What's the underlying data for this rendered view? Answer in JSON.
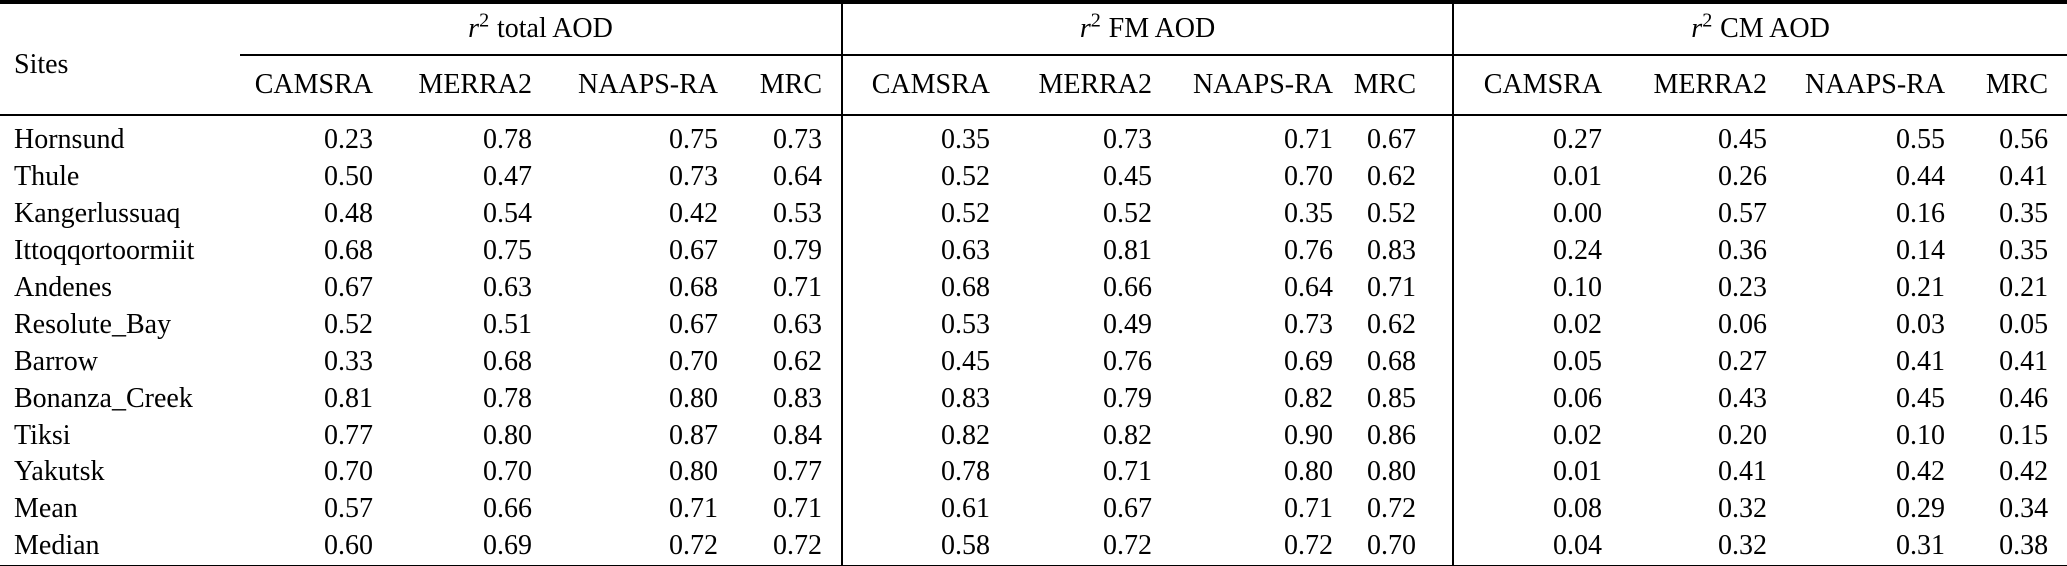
{
  "table": {
    "site_column_header": "Sites",
    "groups": [
      {
        "symbol": "r",
        "exponent": "2",
        "label": "total AOD"
      },
      {
        "symbol": "r",
        "exponent": "2",
        "label": "FM AOD"
      },
      {
        "symbol": "r",
        "exponent": "2",
        "label": "CM AOD"
      }
    ],
    "model_columns": [
      "CAMSRA",
      "MERRA2",
      "NAAPS-RA",
      "MRC"
    ],
    "rows": [
      {
        "site": "Hornsund",
        "total": [
          "0.23",
          "0.78",
          "0.75",
          "0.73"
        ],
        "fm": [
          "0.35",
          "0.73",
          "0.71",
          "0.67"
        ],
        "cm": [
          "0.27",
          "0.45",
          "0.55",
          "0.56"
        ]
      },
      {
        "site": "Thule",
        "total": [
          "0.50",
          "0.47",
          "0.73",
          "0.64"
        ],
        "fm": [
          "0.52",
          "0.45",
          "0.70",
          "0.62"
        ],
        "cm": [
          "0.01",
          "0.26",
          "0.44",
          "0.41"
        ]
      },
      {
        "site": "Kangerlussuaq",
        "total": [
          "0.48",
          "0.54",
          "0.42",
          "0.53"
        ],
        "fm": [
          "0.52",
          "0.52",
          "0.35",
          "0.52"
        ],
        "cm": [
          "0.00",
          "0.57",
          "0.16",
          "0.35"
        ]
      },
      {
        "site": "Ittoqqortoormiit",
        "total": [
          "0.68",
          "0.75",
          "0.67",
          "0.79"
        ],
        "fm": [
          "0.63",
          "0.81",
          "0.76",
          "0.83"
        ],
        "cm": [
          "0.24",
          "0.36",
          "0.14",
          "0.35"
        ]
      },
      {
        "site": "Andenes",
        "total": [
          "0.67",
          "0.63",
          "0.68",
          "0.71"
        ],
        "fm": [
          "0.68",
          "0.66",
          "0.64",
          "0.71"
        ],
        "cm": [
          "0.10",
          "0.23",
          "0.21",
          "0.21"
        ]
      },
      {
        "site": "Resolute_Bay",
        "total": [
          "0.52",
          "0.51",
          "0.67",
          "0.63"
        ],
        "fm": [
          "0.53",
          "0.49",
          "0.73",
          "0.62"
        ],
        "cm": [
          "0.02",
          "0.06",
          "0.03",
          "0.05"
        ]
      },
      {
        "site": "Barrow",
        "total": [
          "0.33",
          "0.68",
          "0.70",
          "0.62"
        ],
        "fm": [
          "0.45",
          "0.76",
          "0.69",
          "0.68"
        ],
        "cm": [
          "0.05",
          "0.27",
          "0.41",
          "0.41"
        ]
      },
      {
        "site": "Bonanza_Creek",
        "total": [
          "0.81",
          "0.78",
          "0.80",
          "0.83"
        ],
        "fm": [
          "0.83",
          "0.79",
          "0.82",
          "0.85"
        ],
        "cm": [
          "0.06",
          "0.43",
          "0.45",
          "0.46"
        ]
      },
      {
        "site": "Tiksi",
        "total": [
          "0.77",
          "0.80",
          "0.87",
          "0.84"
        ],
        "fm": [
          "0.82",
          "0.82",
          "0.90",
          "0.86"
        ],
        "cm": [
          "0.02",
          "0.20",
          "0.10",
          "0.15"
        ]
      },
      {
        "site": "Yakutsk",
        "total": [
          "0.70",
          "0.70",
          "0.80",
          "0.77"
        ],
        "fm": [
          "0.78",
          "0.71",
          "0.80",
          "0.80"
        ],
        "cm": [
          "0.01",
          "0.41",
          "0.42",
          "0.42"
        ]
      },
      {
        "site": "Mean",
        "total": [
          "0.57",
          "0.66",
          "0.71",
          "0.71"
        ],
        "fm": [
          "0.61",
          "0.67",
          "0.71",
          "0.72"
        ],
        "cm": [
          "0.08",
          "0.32",
          "0.29",
          "0.34"
        ]
      },
      {
        "site": "Median",
        "total": [
          "0.60",
          "0.69",
          "0.72",
          "0.72"
        ],
        "fm": [
          "0.58",
          "0.72",
          "0.72",
          "0.70"
        ],
        "cm": [
          "0.04",
          "0.32",
          "0.31",
          "0.38"
        ]
      }
    ],
    "colors": {
      "rule": "#000000",
      "text": "#000000",
      "background": "#ffffff"
    }
  }
}
